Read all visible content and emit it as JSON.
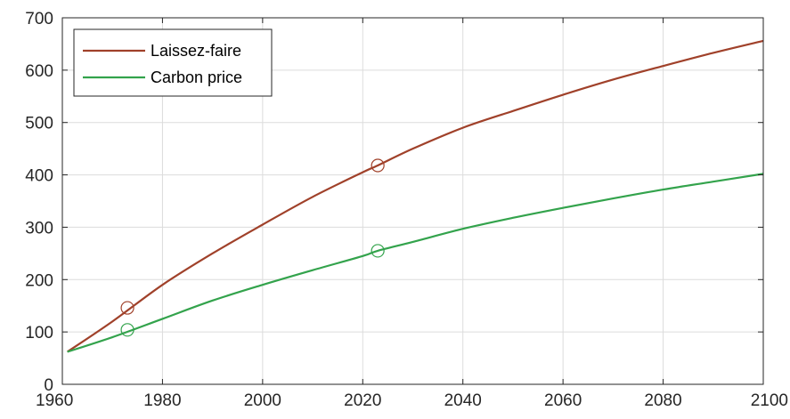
{
  "chart_data": {
    "type": "line",
    "title": "",
    "xlabel": "",
    "ylabel": "",
    "xlim": [
      1960,
      2100
    ],
    "ylim": [
      0,
      700
    ],
    "xticks": [
      1960,
      1980,
      2000,
      2020,
      2040,
      2060,
      2080,
      2100
    ],
    "yticks": [
      0,
      100,
      200,
      300,
      400,
      500,
      600,
      700
    ],
    "grid": true,
    "legend_position": "top-left",
    "series": [
      {
        "name": "Laissez-faire",
        "color": "#a0412a",
        "x": [
          1961,
          1970,
          1980,
          1990,
          2000,
          2010,
          2020,
          2023,
          2030,
          2040,
          2050,
          2060,
          2070,
          2080,
          2090,
          2100
        ],
        "y": [
          62,
          120,
          190,
          250,
          305,
          358,
          405,
          418,
          450,
          490,
          522,
          553,
          582,
          608,
          633,
          656
        ],
        "markers": [
          {
            "x": 1973,
            "y": 146
          },
          {
            "x": 2023,
            "y": 418
          }
        ]
      },
      {
        "name": "Carbon price",
        "color": "#33a34c",
        "x": [
          1961,
          1970,
          1980,
          1990,
          2000,
          2010,
          2020,
          2023,
          2030,
          2040,
          2050,
          2060,
          2070,
          2080,
          2090,
          2100
        ],
        "y": [
          62,
          90,
          125,
          160,
          190,
          218,
          245,
          255,
          272,
          297,
          318,
          337,
          355,
          372,
          387,
          402
        ],
        "markers": [
          {
            "x": 1973,
            "y": 104
          },
          {
            "x": 2023,
            "y": 255
          }
        ]
      }
    ]
  }
}
